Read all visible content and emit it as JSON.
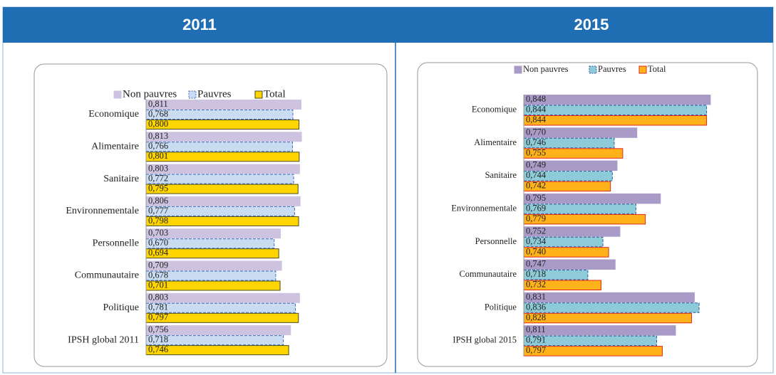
{
  "chart_data": [
    {
      "type": "bar",
      "orientation": "horizontal",
      "title": "2011",
      "categories": [
        "Economique",
        "Alimentaire",
        "Sanitaire",
        "Environnementale",
        "Personnelle",
        "Communautaire",
        "Politique",
        "IPSH global 2011"
      ],
      "xlim": [
        0,
        0.85
      ],
      "series": [
        {
          "name": "Non pauvres",
          "color": "#cdc3e0",
          "edgecolor": "#cdc3e0",
          "dashed": false,
          "values": [
            0.811,
            0.813,
            0.803,
            0.806,
            0.703,
            0.709,
            0.803,
            0.756
          ],
          "value_labels": [
            "0,811",
            "0,813",
            "0,803",
            "0,806",
            "0,703",
            "0,709",
            "0,803",
            "0,756"
          ]
        },
        {
          "name": "Pauvres",
          "color": "#c9dcf2",
          "edgecolor": "#3f6fbf",
          "dashed": true,
          "values": [
            0.768,
            0.766,
            0.772,
            0.777,
            0.67,
            0.678,
            0.781,
            0.718
          ],
          "value_labels": [
            "0,768",
            "0,766",
            "0,772",
            "0,777",
            "0,670",
            "0,678",
            "0,781",
            "0,718"
          ]
        },
        {
          "name": "Total",
          "color": "#ffd500",
          "edgecolor": "#4a4a20",
          "dashed": false,
          "values": [
            0.8,
            0.801,
            0.795,
            0.798,
            0.694,
            0.701,
            0.797,
            0.746
          ],
          "value_labels": [
            "0,800",
            "0,801",
            "0,795",
            "0,798",
            "0,694",
            "0,701",
            "0,797",
            "0,746"
          ]
        }
      ]
    },
    {
      "type": "bar",
      "orientation": "horizontal",
      "title": "2015",
      "categories": [
        "Economique",
        "Alimentaire",
        "Sanitaire",
        "Environnementale",
        "Personnelle",
        "Communautaire",
        "Politique",
        "IPSH global 2015"
      ],
      "xlim": [
        0.65,
        0.87
      ],
      "series": [
        {
          "name": "Non pauvres",
          "color": "#a99bc8",
          "edgecolor": "#a99bc8",
          "dashed": false,
          "values": [
            0.848,
            0.77,
            0.749,
            0.795,
            0.752,
            0.747,
            0.831,
            0.811
          ],
          "value_labels": [
            "0,848",
            "0,770",
            "0,749",
            "0,795",
            "0,752",
            "0,747",
            "0,831",
            "0,811"
          ]
        },
        {
          "name": "Pauvres",
          "color": "#8ecbd9",
          "edgecolor": "#2a5d9a",
          "dashed": true,
          "values": [
            0.844,
            0.746,
            0.744,
            0.769,
            0.734,
            0.718,
            0.836,
            0.791
          ],
          "value_labels": [
            "0,844",
            "0,746",
            "0,744",
            "0,769",
            "0,734",
            "0,718",
            "0,836",
            "0,791"
          ]
        },
        {
          "name": "Total",
          "color": "#ffb21a",
          "edgecolor": "#e0281e",
          "dashed": false,
          "values": [
            0.844,
            0.755,
            0.742,
            0.779,
            0.74,
            0.732,
            0.828,
            0.797
          ],
          "value_labels": [
            "0,844",
            "0,755",
            "0,742",
            "0,779",
            "0,740",
            "0,732",
            "0,828",
            "0,797"
          ]
        }
      ]
    }
  ]
}
